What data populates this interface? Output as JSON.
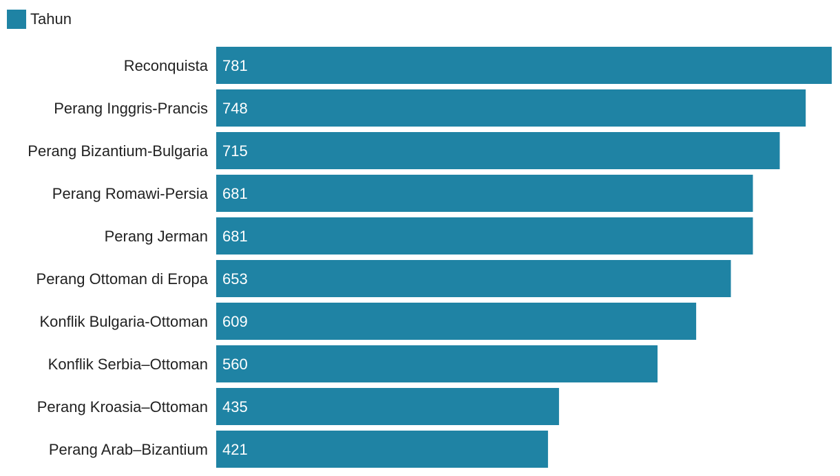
{
  "chart_data": {
    "type": "bar",
    "orientation": "horizontal",
    "categories": [
      "Reconquista",
      "Perang Inggris-Prancis",
      "Perang Bizantium-Bulgaria",
      "Perang Romawi-Persia",
      "Perang Jerman",
      "Perang Ottoman di Eropa",
      "Konflik Bulgaria-Ottoman",
      "Konflik Serbia–Ottoman",
      "Perang Kroasia–Ottoman",
      "Perang Arab–Bizantium"
    ],
    "series": [
      {
        "name": "Tahun",
        "color": "#1f83a4",
        "values": [
          781,
          748,
          715,
          681,
          681,
          653,
          609,
          560,
          435,
          421
        ]
      }
    ],
    "value_labels": [
      "781",
      "748",
      "715",
      "681",
      "681",
      "653",
      "609",
      "560",
      "435",
      "421"
    ],
    "title": "",
    "xlabel": "",
    "ylabel": "",
    "xlim": [
      0,
      781
    ],
    "grid": false,
    "legend_position": "top-left",
    "legend": {
      "label": "Tahun"
    }
  }
}
